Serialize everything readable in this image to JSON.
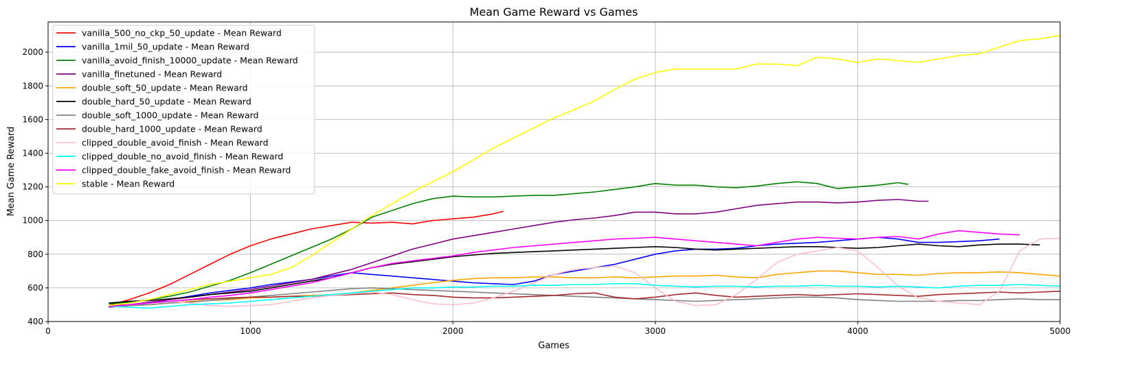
{
  "chart_data": {
    "type": "line",
    "title": "Mean Game Reward vs Games",
    "xlabel": "Games",
    "ylabel": "Mean Game Reward",
    "xlim": [
      0,
      5000
    ],
    "ylim": [
      400,
      2180
    ],
    "xticks": [
      0,
      1000,
      2000,
      3000,
      4000,
      5000
    ],
    "yticks": [
      400,
      600,
      800,
      1000,
      1200,
      1400,
      1600,
      1800,
      2000
    ],
    "grid": true,
    "legend_position": "top-left",
    "series": [
      {
        "name": "vanilla_500_no_ckp_50_update - Mean Reward",
        "color": "#ff0000",
        "x": [
          300,
          400,
          500,
          600,
          700,
          800,
          900,
          1000,
          1100,
          1200,
          1300,
          1400,
          1500,
          1600,
          1700,
          1800,
          1900,
          2000,
          2100,
          2200,
          2250
        ],
        "y": [
          495,
          530,
          570,
          620,
          680,
          740,
          800,
          850,
          890,
          920,
          950,
          970,
          990,
          985,
          990,
          980,
          1000,
          1010,
          1020,
          1040,
          1055
        ]
      },
      {
        "name": "vanilla_1mil_50_update - Mean Reward",
        "color": "#0000ff",
        "x": [
          300,
          400,
          500,
          600,
          700,
          800,
          900,
          1000,
          1100,
          1200,
          1300,
          1400,
          1500,
          1600,
          1700,
          1800,
          1900,
          2000,
          2100,
          2200,
          2300,
          2400,
          2500,
          2600,
          2700,
          2800,
          2900,
          3000,
          3100,
          3200,
          3300,
          3400,
          3500,
          3600,
          3700,
          3800,
          3900,
          4000,
          4100,
          4200,
          4300,
          4400,
          4500,
          4600,
          4700
        ],
        "y": [
          485,
          495,
          510,
          530,
          550,
          570,
          585,
          600,
          620,
          635,
          650,
          670,
          690,
          680,
          670,
          660,
          650,
          640,
          630,
          625,
          620,
          640,
          680,
          700,
          720,
          740,
          770,
          800,
          820,
          830,
          830,
          835,
          850,
          860,
          865,
          870,
          880,
          890,
          900,
          890,
          870,
          870,
          875,
          880,
          890
        ]
      },
      {
        "name": "vanilla_avoid_finish_10000_update - Mean Reward",
        "color": "#008000",
        "x": [
          300,
          400,
          500,
          600,
          700,
          800,
          900,
          1000,
          1100,
          1200,
          1300,
          1400,
          1500,
          1600,
          1700,
          1800,
          1900,
          2000,
          2100,
          2200,
          2300,
          2400,
          2500,
          2600,
          2700,
          2800,
          2900,
          3000,
          3100,
          3200,
          3300,
          3400,
          3500,
          3600,
          3700,
          3800,
          3900,
          4000,
          4100,
          4200,
          4250
        ],
        "y": [
          505,
          515,
          530,
          550,
          575,
          610,
          645,
          690,
          740,
          790,
          840,
          890,
          950,
          1020,
          1060,
          1100,
          1130,
          1145,
          1140,
          1140,
          1145,
          1150,
          1150,
          1160,
          1170,
          1185,
          1200,
          1220,
          1210,
          1210,
          1200,
          1195,
          1205,
          1220,
          1230,
          1220,
          1190,
          1200,
          1210,
          1225,
          1215
        ]
      },
      {
        "name": "vanilla_finetuned - Mean Reward",
        "color": "#800080",
        "x": [
          300,
          400,
          500,
          600,
          700,
          800,
          900,
          1000,
          1100,
          1200,
          1300,
          1400,
          1500,
          1600,
          1700,
          1800,
          1900,
          2000,
          2100,
          2200,
          2300,
          2400,
          2500,
          2600,
          2700,
          2800,
          2900,
          3000,
          3100,
          3200,
          3300,
          3400,
          3500,
          3600,
          3700,
          3800,
          3900,
          4000,
          4100,
          4200,
          4300,
          4350
        ],
        "y": [
          485,
          500,
          515,
          530,
          545,
          560,
          575,
          590,
          610,
          630,
          650,
          680,
          710,
          750,
          790,
          830,
          860,
          890,
          910,
          930,
          950,
          970,
          990,
          1005,
          1015,
          1030,
          1050,
          1050,
          1040,
          1040,
          1050,
          1070,
          1090,
          1100,
          1110,
          1110,
          1105,
          1110,
          1120,
          1125,
          1115,
          1115
        ]
      },
      {
        "name": "double_soft_50_update - Mean Reward",
        "color": "#ffa500",
        "x": [
          300,
          400,
          500,
          600,
          700,
          800,
          900,
          1000,
          1100,
          1200,
          1300,
          1400,
          1500,
          1600,
          1700,
          1800,
          1900,
          2000,
          2100,
          2200,
          2300,
          2400,
          2500,
          2600,
          2700,
          2800,
          2900,
          3000,
          3100,
          3200,
          3300,
          3400,
          3500,
          3600,
          3700,
          3800,
          3900,
          4000,
          4100,
          4200,
          4300,
          4400,
          4500,
          4600,
          4700,
          4800,
          4900,
          5000
        ],
        "y": [
          490,
          495,
          500,
          510,
          520,
          525,
          530,
          540,
          545,
          550,
          555,
          560,
          570,
          585,
          600,
          615,
          630,
          645,
          655,
          660,
          660,
          665,
          665,
          660,
          660,
          665,
          660,
          665,
          670,
          670,
          675,
          665,
          660,
          680,
          690,
          700,
          700,
          690,
          680,
          680,
          675,
          685,
          690,
          690,
          695,
          690,
          680,
          670
        ]
      },
      {
        "name": "double_hard_50_update - Mean Reward",
        "color": "#000000",
        "x": [
          300,
          400,
          500,
          600,
          700,
          800,
          900,
          1000,
          1100,
          1200,
          1300,
          1400,
          1500,
          1600,
          1700,
          1800,
          1900,
          2000,
          2100,
          2200,
          2300,
          2400,
          2500,
          2600,
          2700,
          2800,
          2900,
          3000,
          3100,
          3200,
          3300,
          3400,
          3500,
          3600,
          3700,
          3800,
          3900,
          4000,
          4100,
          4200,
          4300,
          4400,
          4500,
          4600,
          4700,
          4800,
          4900
        ],
        "y": [
          510,
          520,
          525,
          535,
          545,
          560,
          570,
          580,
          600,
          620,
          640,
          660,
          690,
          720,
          740,
          755,
          770,
          785,
          795,
          805,
          810,
          815,
          820,
          825,
          830,
          835,
          840,
          845,
          840,
          830,
          825,
          830,
          835,
          840,
          845,
          845,
          840,
          835,
          840,
          850,
          860,
          850,
          845,
          855,
          860,
          860,
          855
        ]
      },
      {
        "name": "double_soft_1000_update - Mean Reward",
        "color": "#808080",
        "x": [
          300,
          400,
          500,
          600,
          700,
          800,
          900,
          1000,
          1100,
          1200,
          1300,
          1400,
          1500,
          1600,
          1700,
          1800,
          1900,
          2000,
          2100,
          2200,
          2300,
          2400,
          2500,
          2600,
          2700,
          2800,
          2900,
          3000,
          3100,
          3200,
          3300,
          3400,
          3500,
          3600,
          3700,
          3800,
          3900,
          4000,
          4100,
          4200,
          4300,
          4400,
          4500,
          4600,
          4700,
          4800,
          4900,
          5000
        ],
        "y": [
          490,
          495,
          500,
          510,
          515,
          525,
          535,
          545,
          555,
          565,
          575,
          585,
          595,
          600,
          595,
          590,
          585,
          580,
          575,
          570,
          565,
          560,
          555,
          550,
          545,
          540,
          535,
          530,
          525,
          520,
          525,
          530,
          535,
          540,
          545,
          545,
          540,
          530,
          525,
          520,
          520,
          520,
          525,
          525,
          530,
          535,
          530,
          530
        ]
      },
      {
        "name": "double_hard_1000_update - Mean Reward",
        "color": "#a52a2a",
        "x": [
          300,
          400,
          500,
          600,
          700,
          800,
          900,
          1000,
          1100,
          1200,
          1300,
          1400,
          1500,
          1600,
          1700,
          1800,
          1900,
          2000,
          2100,
          2200,
          2300,
          2400,
          2500,
          2600,
          2700,
          2800,
          2900,
          3000,
          3100,
          3200,
          3300,
          3400,
          3500,
          3600,
          3700,
          3800,
          3900,
          4000,
          4100,
          4200,
          4300,
          4400,
          4500,
          4600,
          4700,
          4800,
          4900,
          5000
        ],
        "y": [
          495,
          500,
          510,
          520,
          530,
          535,
          540,
          545,
          545,
          550,
          550,
          555,
          560,
          565,
          570,
          560,
          555,
          545,
          540,
          540,
          545,
          550,
          555,
          565,
          570,
          545,
          535,
          545,
          560,
          570,
          555,
          545,
          550,
          555,
          560,
          555,
          560,
          565,
          560,
          555,
          550,
          560,
          565,
          570,
          575,
          570,
          575,
          580
        ]
      },
      {
        "name": "clipped_double_avoid_finish - Mean Reward",
        "color": "#ffc0cb",
        "x": [
          300,
          400,
          500,
          600,
          700,
          800,
          900,
          1000,
          1100,
          1200,
          1300,
          1400,
          1500,
          1600,
          1700,
          1800,
          1900,
          2000,
          2100,
          2200,
          2300,
          2400,
          2500,
          2600,
          2700,
          2800,
          2900,
          3000,
          3100,
          3200,
          3300,
          3400,
          3500,
          3600,
          3700,
          3800,
          3900,
          4000,
          4100,
          4200,
          4300,
          4400,
          4500,
          4600,
          4700,
          4800,
          4900,
          5000
        ],
        "y": [
          490,
          500,
          510,
          520,
          510,
          495,
          490,
          495,
          500,
          520,
          540,
          555,
          565,
          575,
          560,
          530,
          505,
          500,
          510,
          540,
          580,
          630,
          680,
          710,
          720,
          730,
          690,
          600,
          520,
          495,
          500,
          560,
          650,
          750,
          800,
          820,
          840,
          820,
          720,
          610,
          540,
          520,
          510,
          500,
          580,
          820,
          890,
          895
        ]
      },
      {
        "name": "clipped_double_no_avoid_finish - Mean Reward",
        "color": "#00ffff",
        "x": [
          300,
          400,
          500,
          600,
          700,
          800,
          900,
          1000,
          1100,
          1200,
          1300,
          1400,
          1500,
          1600,
          1700,
          1800,
          1900,
          2000,
          2100,
          2200,
          2300,
          2400,
          2500,
          2600,
          2700,
          2800,
          2900,
          3000,
          3100,
          3200,
          3300,
          3400,
          3500,
          3600,
          3700,
          3800,
          3900,
          4000,
          4100,
          4200,
          4300,
          4400,
          4500,
          4600,
          4700,
          4800,
          4900,
          5000
        ],
        "y": [
          490,
          485,
          480,
          490,
          500,
          505,
          510,
          520,
          530,
          540,
          550,
          560,
          570,
          580,
          590,
          600,
          600,
          605,
          605,
          610,
          610,
          615,
          615,
          620,
          620,
          625,
          625,
          615,
          610,
          605,
          610,
          610,
          605,
          610,
          610,
          615,
          610,
          610,
          605,
          610,
          605,
          600,
          610,
          615,
          615,
          620,
          615,
          610
        ]
      },
      {
        "name": "clipped_double_fake_avoid_finish - Mean Reward",
        "color": "#ff00ff",
        "x": [
          300,
          400,
          500,
          600,
          700,
          800,
          900,
          1000,
          1100,
          1200,
          1300,
          1400,
          1500,
          1600,
          1700,
          1800,
          1900,
          2000,
          2100,
          2200,
          2300,
          2400,
          2500,
          2600,
          2700,
          2800,
          2900,
          3000,
          3100,
          3200,
          3300,
          3400,
          3500,
          3600,
          3700,
          3800,
          3900,
          4000,
          4100,
          4200,
          4300,
          4400,
          4500,
          4600,
          4700,
          4800
        ],
        "y": [
          490,
          500,
          510,
          520,
          530,
          545,
          555,
          570,
          590,
          610,
          630,
          660,
          690,
          720,
          745,
          760,
          775,
          790,
          810,
          825,
          840,
          850,
          860,
          870,
          880,
          890,
          895,
          900,
          890,
          880,
          870,
          860,
          850,
          870,
          890,
          900,
          895,
          890,
          900,
          905,
          890,
          920,
          940,
          930,
          920,
          915
        ]
      },
      {
        "name": "stable - Mean Reward",
        "color": "#ffff00",
        "x": [
          300,
          400,
          500,
          600,
          700,
          800,
          900,
          1000,
          1100,
          1200,
          1300,
          1400,
          1500,
          1600,
          1700,
          1800,
          1900,
          2000,
          2100,
          2200,
          2300,
          2400,
          2500,
          2600,
          2700,
          2800,
          2900,
          3000,
          3100,
          3200,
          3300,
          3400,
          3500,
          3600,
          3700,
          3800,
          3900,
          4000,
          4100,
          4200,
          4300,
          4400,
          4500,
          4600,
          4700,
          4800,
          4900,
          5000
        ],
        "y": [
          495,
          510,
          530,
          560,
          590,
          620,
          640,
          660,
          680,
          720,
          790,
          870,
          950,
          1030,
          1100,
          1170,
          1230,
          1290,
          1360,
          1430,
          1490,
          1550,
          1610,
          1660,
          1710,
          1780,
          1840,
          1880,
          1900,
          1900,
          1900,
          1900,
          1930,
          1930,
          1920,
          1970,
          1960,
          1940,
          1960,
          1950,
          1940,
          1960,
          1980,
          1990,
          2030,
          2070,
          2080,
          2100
        ]
      }
    ]
  }
}
